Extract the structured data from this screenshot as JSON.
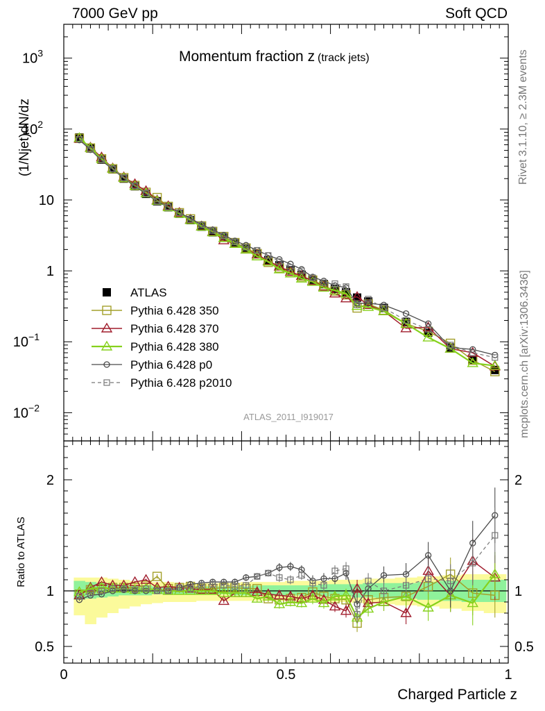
{
  "header": {
    "left": "7000 GeV pp",
    "right": "Soft QCD"
  },
  "side": {
    "rivet": "Rivet 3.1.10, ≥ 2.3M events",
    "mcplots": "mcplots.cern.ch [arXiv:1306.3436]"
  },
  "analysis_id": "ATLAS_2011_I919017",
  "colors": {
    "atlas": "#000000",
    "p350": "#a3a02a",
    "p370": "#a01c2c",
    "p380": "#86d11c",
    "p0": "#4a4a4a",
    "p2010": "#777777",
    "band_inner": "#8ff29b",
    "band_outer": "#fbfa9b"
  },
  "chart_data": [
    {
      "type": "line",
      "title": "Momentum fraction z",
      "title_suffix": "(track jets)",
      "ylabel": "(1/Njet)dN/dz",
      "yscale": "log",
      "ylim": [
        0.004,
        3000
      ],
      "xlim": [
        0,
        1
      ],
      "y_ticks": [
        {
          "value": 0.01,
          "label": "10",
          "exp": "−2"
        },
        {
          "value": 0.1,
          "label": "10",
          "exp": "−1"
        },
        {
          "value": 1,
          "label": "1",
          "exp": ""
        },
        {
          "value": 10,
          "label": "10",
          "exp": ""
        },
        {
          "value": 100,
          "label": "10",
          "exp": "2"
        },
        {
          "value": 1000,
          "label": "10",
          "exp": "3"
        }
      ],
      "legend_position": "bottom-left",
      "x": [
        0.035,
        0.06,
        0.085,
        0.11,
        0.135,
        0.16,
        0.185,
        0.21,
        0.235,
        0.26,
        0.285,
        0.31,
        0.335,
        0.36,
        0.385,
        0.41,
        0.435,
        0.46,
        0.485,
        0.51,
        0.535,
        0.56,
        0.585,
        0.61,
        0.635,
        0.66,
        0.685,
        0.72,
        0.77,
        0.82,
        0.87,
        0.92,
        0.97
      ],
      "series": [
        {
          "name": "ATLAS",
          "style": "data",
          "values": [
            76,
            53,
            37,
            27,
            20,
            15.6,
            12.2,
            9.6,
            7.9,
            6.4,
            5.2,
            4.2,
            3.5,
            2.95,
            2.45,
            2.05,
            1.72,
            1.42,
            1.2,
            1.02,
            0.88,
            0.75,
            0.65,
            0.56,
            0.5,
            0.42,
            0.37,
            0.3,
            0.19,
            0.135,
            0.083,
            0.056,
            0.04
          ]
        },
        {
          "name": "Pythia 6.428 350",
          "style": "p350",
          "values": [
            74,
            54,
            38,
            27.5,
            20.6,
            16,
            12.8,
            10.8,
            8.1,
            6.6,
            5.4,
            4.3,
            3.6,
            3.05,
            2.5,
            2.1,
            1.75,
            1.32,
            1.1,
            0.95,
            0.83,
            0.74,
            0.62,
            0.52,
            0.46,
            0.3,
            0.34,
            0.28,
            0.18,
            0.14,
            0.095,
            0.055,
            0.038
          ]
        },
        {
          "name": "Pythia 6.428 370",
          "style": "p370",
          "values": [
            73,
            55,
            40,
            28,
            21,
            16.8,
            13.4,
            9.9,
            8.2,
            6.6,
            5.3,
            4.25,
            3.55,
            2.7,
            2.4,
            2.0,
            1.7,
            1.38,
            1.15,
            0.97,
            0.85,
            0.72,
            0.6,
            0.48,
            0.41,
            0.43,
            0.33,
            0.27,
            0.155,
            0.16,
            0.08,
            0.07,
            0.045
          ]
        },
        {
          "name": "Pythia 6.428 380",
          "style": "p380",
          "values": [
            75,
            54,
            38,
            27.5,
            20.5,
            15.8,
            12.4,
            9.7,
            7.9,
            6.4,
            5.2,
            4.2,
            3.5,
            2.9,
            2.4,
            2.0,
            1.6,
            1.35,
            1.05,
            0.92,
            0.78,
            0.7,
            0.58,
            0.53,
            0.48,
            0.32,
            0.31,
            0.27,
            0.18,
            0.115,
            0.08,
            0.05,
            0.046
          ]
        },
        {
          "name": "Pythia 6.428 p0",
          "style": "p0",
          "values": [
            70,
            51,
            36,
            27,
            20.3,
            15.6,
            12.2,
            9.6,
            7.9,
            6.6,
            5.5,
            4.5,
            3.8,
            3.2,
            2.65,
            2.3,
            1.95,
            1.65,
            1.45,
            1.25,
            1.05,
            0.82,
            0.72,
            0.62,
            0.58,
            0.35,
            0.35,
            0.33,
            0.25,
            0.18,
            0.083,
            0.078,
            0.065
          ]
        },
        {
          "name": "Pythia 6.428 p2010",
          "style": "p2010",
          "values": [
            72,
            52,
            37,
            27.5,
            20.5,
            15.8,
            12.4,
            9.6,
            7.9,
            6.6,
            5.3,
            4.4,
            3.7,
            3.1,
            2.55,
            2.15,
            1.95,
            1.65,
            1.35,
            1.12,
            1.0,
            0.8,
            0.68,
            0.66,
            0.6,
            0.33,
            0.4,
            0.3,
            0.2,
            0.15,
            0.09,
            0.07,
            0.06
          ]
        }
      ]
    },
    {
      "type": "line",
      "title": "",
      "ylabel": "Ratio to ATLAS",
      "xlabel": "Charged Particle z",
      "ylim": [
        0.35,
        2.35
      ],
      "xlim": [
        0,
        1
      ],
      "y_ticks": [
        {
          "value": 0.5,
          "label": "0.5"
        },
        {
          "value": 1,
          "label": "1"
        },
        {
          "value": 2,
          "label": "2"
        }
      ],
      "x_ticks": [
        {
          "value": 0,
          "label": "0"
        },
        {
          "value": 0.5,
          "label": "0.5"
        },
        {
          "value": 1,
          "label": "1"
        }
      ],
      "x": [
        0.035,
        0.06,
        0.085,
        0.11,
        0.135,
        0.16,
        0.185,
        0.21,
        0.235,
        0.26,
        0.285,
        0.31,
        0.335,
        0.36,
        0.385,
        0.41,
        0.435,
        0.46,
        0.485,
        0.51,
        0.535,
        0.56,
        0.585,
        0.61,
        0.635,
        0.66,
        0.685,
        0.72,
        0.77,
        0.82,
        0.87,
        0.92,
        0.97
      ],
      "band_inner": [
        [
          0.92,
          1.09
        ],
        [
          0.93,
          1.08
        ],
        [
          0.94,
          1.07
        ],
        [
          0.95,
          1.06
        ],
        [
          0.96,
          1.05
        ],
        [
          0.96,
          1.05
        ],
        [
          0.96,
          1.05
        ],
        [
          0.97,
          1.04
        ],
        [
          0.97,
          1.04
        ],
        [
          0.97,
          1.04
        ],
        [
          0.97,
          1.04
        ],
        [
          0.97,
          1.04
        ],
        [
          0.97,
          1.04
        ],
        [
          0.97,
          1.04
        ],
        [
          0.96,
          1.04
        ],
        [
          0.96,
          1.04
        ],
        [
          0.96,
          1.05
        ],
        [
          0.96,
          1.05
        ],
        [
          0.96,
          1.05
        ],
        [
          0.96,
          1.05
        ],
        [
          0.96,
          1.05
        ],
        [
          0.96,
          1.05
        ],
        [
          0.95,
          1.06
        ],
        [
          0.95,
          1.06
        ],
        [
          0.95,
          1.06
        ],
        [
          0.94,
          1.06
        ],
        [
          0.94,
          1.07
        ],
        [
          0.93,
          1.07
        ],
        [
          0.93,
          1.07
        ],
        [
          0.92,
          1.08
        ],
        [
          0.91,
          1.09
        ],
        [
          0.9,
          1.1
        ],
        [
          0.9,
          1.1
        ]
      ],
      "band_outer": [
        [
          0.78,
          1.12
        ],
        [
          0.7,
          1.12
        ],
        [
          0.76,
          1.12
        ],
        [
          0.8,
          1.11
        ],
        [
          0.84,
          1.1
        ],
        [
          0.86,
          1.09
        ],
        [
          0.88,
          1.09
        ],
        [
          0.89,
          1.08
        ],
        [
          0.9,
          1.08
        ],
        [
          0.9,
          1.07
        ],
        [
          0.9,
          1.07
        ],
        [
          0.91,
          1.07
        ],
        [
          0.91,
          1.07
        ],
        [
          0.91,
          1.07
        ],
        [
          0.91,
          1.07
        ],
        [
          0.91,
          1.08
        ],
        [
          0.91,
          1.08
        ],
        [
          0.91,
          1.08
        ],
        [
          0.91,
          1.08
        ],
        [
          0.91,
          1.09
        ],
        [
          0.9,
          1.09
        ],
        [
          0.9,
          1.09
        ],
        [
          0.9,
          1.09
        ],
        [
          0.9,
          1.1
        ],
        [
          0.9,
          1.1
        ],
        [
          0.89,
          1.1
        ],
        [
          0.89,
          1.11
        ],
        [
          0.88,
          1.11
        ],
        [
          0.87,
          1.12
        ],
        [
          0.86,
          1.13
        ],
        [
          0.84,
          1.14
        ],
        [
          0.82,
          1.15
        ],
        [
          0.8,
          1.15
        ]
      ],
      "series": [
        {
          "name": "Pythia 6.428 350",
          "style": "p350",
          "values": [
            0.97,
            1.01,
            1.02,
            1.03,
            1.03,
            1.03,
            1.05,
            1.13,
            1.02,
            1.03,
            1.04,
            1.02,
            1.02,
            1.03,
            1.03,
            1.02,
            1.02,
            0.93,
            0.92,
            0.93,
            0.94,
            0.99,
            0.95,
            0.93,
            0.92,
            0.71,
            0.92,
            0.94,
            0.95,
            1.04,
            1.15,
            0.98,
            0.96
          ],
          "err": [
            0.01,
            0.01,
            0.01,
            0.01,
            0.01,
            0.01,
            0.01,
            0.02,
            0.02,
            0.02,
            0.02,
            0.02,
            0.02,
            0.02,
            0.03,
            0.03,
            0.03,
            0.03,
            0.04,
            0.04,
            0.04,
            0.05,
            0.05,
            0.05,
            0.06,
            0.08,
            0.07,
            0.08,
            0.1,
            0.12,
            0.15,
            0.2,
            0.2
          ]
        },
        {
          "name": "Pythia 6.428 370",
          "style": "p370",
          "values": [
            0.96,
            1.03,
            1.08,
            1.05,
            1.05,
            1.08,
            1.1,
            1.03,
            1.04,
            1.03,
            1.02,
            1.01,
            1.01,
            0.91,
            0.98,
            0.98,
            0.99,
            0.97,
            0.96,
            0.95,
            0.93,
            0.96,
            0.92,
            0.86,
            0.82,
            1.02,
            0.89,
            0.9,
            0.8,
            1.18,
            0.96,
            1.27,
            1.12
          ],
          "err": [
            0.01,
            0.01,
            0.01,
            0.01,
            0.01,
            0.01,
            0.01,
            0.02,
            0.02,
            0.02,
            0.02,
            0.02,
            0.02,
            0.02,
            0.03,
            0.03,
            0.03,
            0.03,
            0.04,
            0.04,
            0.04,
            0.05,
            0.05,
            0.05,
            0.06,
            0.08,
            0.07,
            0.08,
            0.1,
            0.12,
            0.15,
            0.2,
            0.2
          ]
        },
        {
          "name": "Pythia 6.428 380",
          "style": "p380",
          "values": [
            0.99,
            1.02,
            1.03,
            1.02,
            1.02,
            1.01,
            1.02,
            1.01,
            1.0,
            1.0,
            1.0,
            1.0,
            1.0,
            0.98,
            0.98,
            0.98,
            0.93,
            0.95,
            0.88,
            0.9,
            0.89,
            0.93,
            0.89,
            0.95,
            0.96,
            0.76,
            0.84,
            0.9,
            0.95,
            0.85,
            0.96,
            0.89,
            1.15
          ],
          "err": [
            0.01,
            0.01,
            0.01,
            0.01,
            0.01,
            0.01,
            0.01,
            0.02,
            0.02,
            0.02,
            0.02,
            0.02,
            0.02,
            0.02,
            0.03,
            0.03,
            0.03,
            0.03,
            0.04,
            0.04,
            0.04,
            0.05,
            0.05,
            0.05,
            0.06,
            0.08,
            0.07,
            0.08,
            0.1,
            0.12,
            0.15,
            0.2,
            0.2
          ]
        },
        {
          "name": "Pythia 6.428 p0",
          "style": "p0",
          "values": [
            0.92,
            0.96,
            0.97,
            1.0,
            1.01,
            1.0,
            1.0,
            1.0,
            1.0,
            1.03,
            1.06,
            1.07,
            1.08,
            1.08,
            1.08,
            1.12,
            1.13,
            1.16,
            1.21,
            1.22,
            1.19,
            1.09,
            1.11,
            1.11,
            1.16,
            0.88,
            1.02,
            1.14,
            1.15,
            1.32,
            1.0,
            1.43,
            1.68
          ],
          "err": [
            0.01,
            0.01,
            0.01,
            0.01,
            0.01,
            0.01,
            0.01,
            0.02,
            0.02,
            0.02,
            0.02,
            0.02,
            0.02,
            0.02,
            0.03,
            0.03,
            0.03,
            0.03,
            0.04,
            0.04,
            0.04,
            0.05,
            0.05,
            0.05,
            0.06,
            0.08,
            0.07,
            0.08,
            0.1,
            0.12,
            0.15,
            0.2,
            0.25
          ]
        },
        {
          "name": "Pythia 6.428 p2010",
          "style": "p2010",
          "values": [
            0.95,
            0.98,
            1.0,
            1.02,
            1.02,
            1.01,
            1.02,
            1.0,
            1.0,
            1.03,
            1.02,
            1.05,
            1.06,
            1.05,
            1.04,
            1.05,
            1.13,
            1.16,
            1.12,
            1.1,
            1.14,
            1.07,
            1.05,
            1.18,
            1.2,
            0.79,
            1.09,
            1.0,
            1.05,
            1.11,
            1.09,
            1.25,
            1.5
          ],
          "err": [
            0.01,
            0.01,
            0.01,
            0.01,
            0.01,
            0.01,
            0.01,
            0.02,
            0.02,
            0.02,
            0.02,
            0.02,
            0.02,
            0.02,
            0.03,
            0.03,
            0.03,
            0.03,
            0.04,
            0.04,
            0.04,
            0.05,
            0.05,
            0.05,
            0.06,
            0.08,
            0.07,
            0.08,
            0.1,
            0.12,
            0.15,
            0.2,
            0.25
          ]
        }
      ]
    }
  ]
}
